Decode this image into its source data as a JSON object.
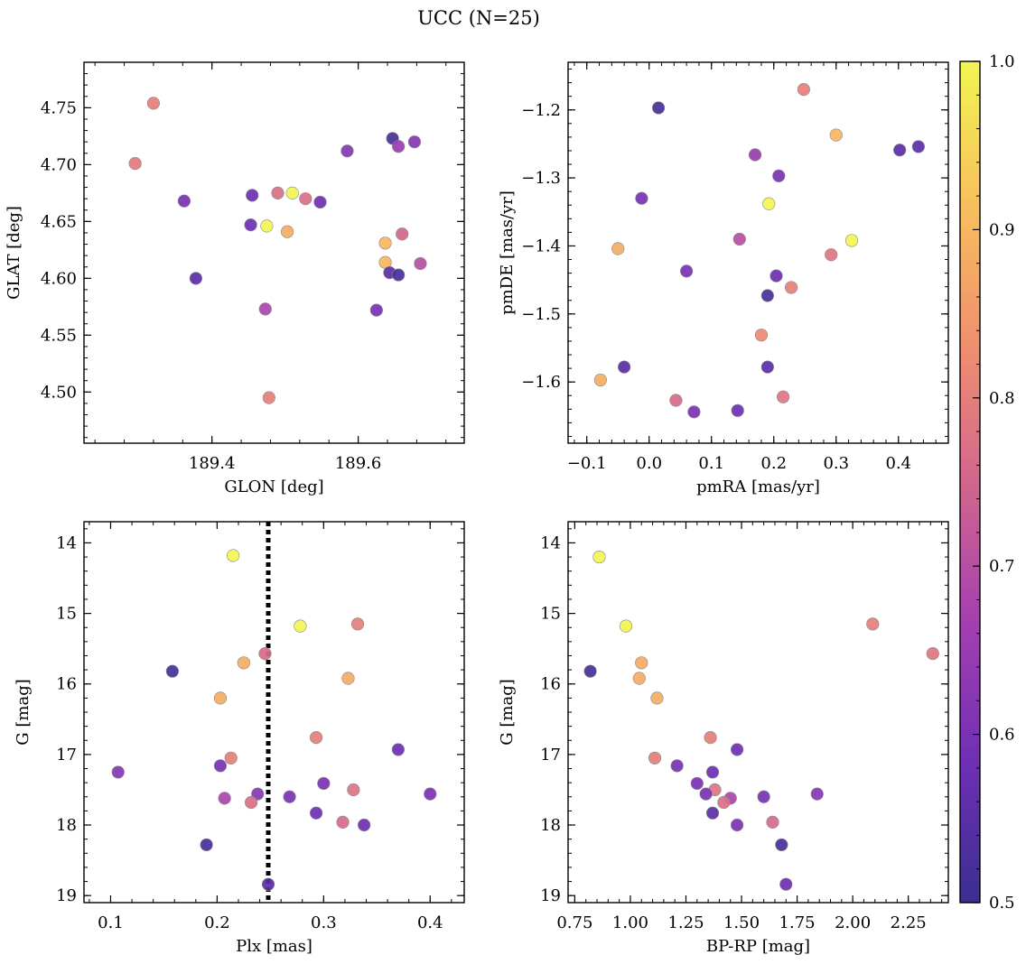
{
  "figure": {
    "title": "UCC (N=25)"
  },
  "colorbar": {
    "range": [
      0.5,
      1.0
    ],
    "ticks": [
      "0.5",
      "0.6",
      "0.7",
      "0.8",
      "0.9",
      "1.0"
    ],
    "colormap": "plasma",
    "colors": [
      "#3a2f8f",
      "#6f2fb5",
      "#a43fb0",
      "#d2668d",
      "#f0906e",
      "#f8c05d",
      "#f2f551"
    ]
  },
  "chart_data": [
    {
      "type": "scatter",
      "title": "",
      "xlabel": "GLON [deg]",
      "ylabel": "GLAT [deg]",
      "xlim": [
        189.225,
        189.745
      ],
      "ylim": [
        4.455,
        4.79
      ],
      "xticks": [
        189.4,
        189.6
      ],
      "xtick_labels": [
        "189.4",
        "189.6"
      ],
      "yticks": [
        4.5,
        4.55,
        4.6,
        4.65,
        4.7,
        4.75
      ],
      "ytick_labels": [
        "4.50",
        "4.55",
        "4.60",
        "4.65",
        "4.70",
        "4.75"
      ],
      "invert_y": false,
      "x": [
        189.32,
        189.295,
        189.362,
        189.378,
        189.455,
        189.453,
        189.475,
        189.49,
        189.51,
        189.503,
        189.528,
        189.548,
        189.585,
        189.647,
        189.655,
        189.677,
        189.637,
        189.66,
        189.637,
        189.643,
        189.655,
        189.685,
        189.625,
        189.473,
        189.478
      ],
      "y": [
        4.754,
        4.701,
        4.668,
        4.6,
        4.673,
        4.647,
        4.646,
        4.675,
        4.675,
        4.641,
        4.67,
        4.667,
        4.712,
        4.723,
        4.716,
        4.72,
        4.631,
        4.639,
        4.614,
        4.605,
        4.603,
        4.613,
        4.572,
        4.573,
        4.495
      ],
      "color_values": [
        0.8,
        0.79,
        0.6,
        0.55,
        0.58,
        0.58,
        1.0,
        0.77,
        1.0,
        0.88,
        0.77,
        0.58,
        0.62,
        0.52,
        0.65,
        0.62,
        0.9,
        0.75,
        0.9,
        0.55,
        0.52,
        0.7,
        0.6,
        0.68,
        0.8
      ]
    },
    {
      "type": "scatter",
      "title": "",
      "xlabel": "pmRA [mas/yr]",
      "ylabel": "pmDE [mas/yr]",
      "xlim": [
        -0.13,
        0.48
      ],
      "ylim": [
        -1.69,
        -1.13
      ],
      "xticks": [
        -0.1,
        0.0,
        0.1,
        0.2,
        0.3,
        0.4
      ],
      "xtick_labels": [
        "−0.1",
        "0.0",
        "0.1",
        "0.2",
        "0.3",
        "0.4"
      ],
      "yticks": [
        -1.6,
        -1.5,
        -1.4,
        -1.3,
        -1.2
      ],
      "ytick_labels": [
        "−1.6",
        "−1.5",
        "−1.4",
        "−1.3",
        "−1.2"
      ],
      "invert_y": false,
      "x": [
        0.015,
        0.248,
        0.3,
        0.402,
        0.432,
        0.17,
        0.208,
        -0.012,
        0.192,
        -0.05,
        0.325,
        0.292,
        0.145,
        0.06,
        0.204,
        0.228,
        0.19,
        0.18,
        -0.04,
        0.19,
        -0.078,
        0.043,
        0.215,
        0.072,
        0.142
      ],
      "y": [
        -1.197,
        -1.17,
        -1.237,
        -1.259,
        -1.254,
        -1.266,
        -1.297,
        -1.33,
        -1.338,
        -1.404,
        -1.392,
        -1.413,
        -1.39,
        -1.437,
        -1.444,
        -1.461,
        -1.473,
        -1.531,
        -1.578,
        -1.578,
        -1.597,
        -1.627,
        -1.622,
        -1.644,
        -1.642
      ],
      "color_values": [
        0.52,
        0.8,
        0.9,
        0.55,
        0.55,
        0.65,
        0.6,
        0.6,
        1.0,
        0.88,
        1.0,
        0.78,
        0.7,
        0.6,
        0.58,
        0.8,
        0.52,
        0.82,
        0.55,
        0.55,
        0.88,
        0.76,
        0.78,
        0.6,
        0.58
      ]
    },
    {
      "type": "scatter",
      "title": "",
      "xlabel": "Plx [mas]",
      "ylabel": "G [mag]",
      "xlim": [
        0.075,
        0.432
      ],
      "ylim": [
        19.1,
        13.7
      ],
      "xticks": [
        0.1,
        0.2,
        0.3,
        0.4
      ],
      "xtick_labels": [
        "0.1",
        "0.2",
        "0.3",
        "0.4"
      ],
      "yticks": [
        14,
        15,
        16,
        17,
        18,
        19
      ],
      "ytick_labels": [
        "14",
        "15",
        "16",
        "17",
        "18",
        "19"
      ],
      "invert_y": true,
      "vline": {
        "x": 0.248,
        "style": "dotted"
      },
      "x": [
        0.215,
        0.278,
        0.332,
        0.158,
        0.245,
        0.225,
        0.323,
        0.203,
        0.293,
        0.107,
        0.37,
        0.213,
        0.203,
        0.3,
        0.328,
        0.207,
        0.238,
        0.268,
        0.4,
        0.232,
        0.293,
        0.318,
        0.338,
        0.19,
        0.248
      ],
      "y": [
        14.18,
        15.18,
        15.15,
        15.82,
        15.57,
        15.7,
        15.92,
        16.2,
        16.76,
        17.25,
        16.93,
        17.05,
        17.16,
        17.41,
        17.5,
        17.62,
        17.56,
        17.6,
        17.56,
        17.68,
        17.83,
        17.96,
        18.0,
        18.28,
        18.84
      ],
      "color_values": [
        1.0,
        1.0,
        0.8,
        0.52,
        0.76,
        0.88,
        0.88,
        0.88,
        0.8,
        0.62,
        0.58,
        0.8,
        0.6,
        0.6,
        0.78,
        0.68,
        0.62,
        0.6,
        0.6,
        0.77,
        0.58,
        0.76,
        0.58,
        0.52,
        0.55
      ]
    },
    {
      "type": "scatter",
      "title": "",
      "xlabel": "BP-RP [mag]",
      "ylabel": "G [mag]",
      "xlim": [
        0.72,
        2.43
      ],
      "ylim": [
        19.1,
        13.7
      ],
      "xticks": [
        0.75,
        1.0,
        1.25,
        1.5,
        1.75,
        2.0,
        2.25
      ],
      "xtick_labels": [
        "0.75",
        "1.00",
        "1.25",
        "1.50",
        "1.75",
        "2.00",
        "2.25"
      ],
      "yticks": [
        14,
        15,
        16,
        17,
        18,
        19
      ],
      "ytick_labels": [
        "14",
        "15",
        "16",
        "17",
        "18",
        "19"
      ],
      "invert_y": true,
      "x": [
        0.86,
        0.98,
        2.09,
        2.36,
        0.82,
        1.05,
        1.04,
        1.12,
        1.36,
        1.48,
        1.11,
        1.21,
        1.37,
        1.3,
        1.38,
        1.34,
        1.45,
        1.42,
        1.6,
        1.84,
        1.37,
        1.48,
        1.64,
        1.68,
        1.7
      ],
      "y": [
        14.2,
        15.18,
        15.15,
        15.57,
        15.82,
        15.7,
        15.92,
        16.2,
        16.76,
        16.93,
        17.05,
        17.16,
        17.25,
        17.41,
        17.5,
        17.56,
        17.62,
        17.68,
        17.6,
        17.56,
        17.83,
        18.0,
        17.96,
        18.28,
        18.84
      ],
      "color_values": [
        1.0,
        1.0,
        0.8,
        0.78,
        0.52,
        0.88,
        0.88,
        0.88,
        0.8,
        0.58,
        0.8,
        0.6,
        0.58,
        0.6,
        0.78,
        0.6,
        0.68,
        0.77,
        0.6,
        0.62,
        0.55,
        0.6,
        0.76,
        0.52,
        0.58
      ]
    }
  ]
}
